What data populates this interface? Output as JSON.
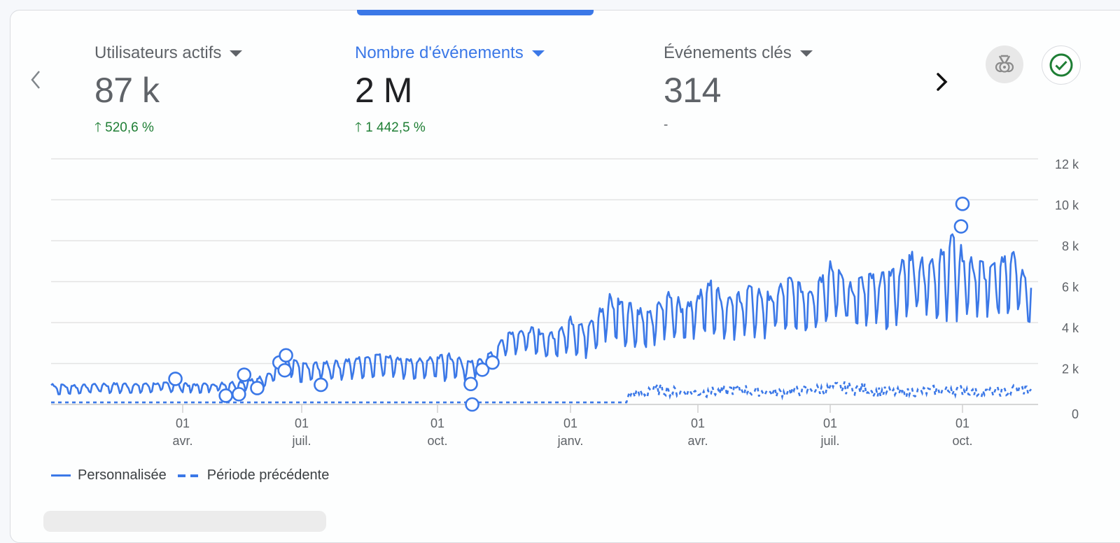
{
  "metrics": [
    {
      "label": "Utilisateurs actifs",
      "value": "87 k",
      "delta": "520,6 %",
      "delta_direction": "up",
      "active": false
    },
    {
      "label": "Nombre d'événements",
      "value": "2 M",
      "delta": "1 442,5 %",
      "delta_direction": "up",
      "active": true
    },
    {
      "label": "Événements clés",
      "value": "314",
      "delta": "-",
      "delta_direction": "none",
      "active": false
    }
  ],
  "nav": {
    "prev_icon": "chevron-left-icon",
    "next_icon": "chevron-right-icon"
  },
  "actions": {
    "insights_icon": "medal-icon",
    "status_icon": "check-circle-icon"
  },
  "colors": {
    "accent": "#3b78e7",
    "positive": "#1e7e34",
    "muted": "#5f6368"
  },
  "legend": {
    "series_current": "Personnalisée",
    "series_previous": "Période précédente"
  },
  "chart_data": {
    "type": "line",
    "y_ticks": [
      "0",
      "2 k",
      "4 k",
      "6 k",
      "8 k",
      "10 k",
      "12 k"
    ],
    "ylim": [
      0,
      12000
    ],
    "y_axis_position": "right",
    "grid": true,
    "legend_position": "bottom-left",
    "x_ticks": [
      {
        "date": "2023-04-01",
        "day": "01",
        "month": "avr."
      },
      {
        "date": "2023-07-01",
        "day": "01",
        "month": "juil."
      },
      {
        "date": "2023-10-01",
        "day": "01",
        "month": "oct."
      },
      {
        "date": "2024-01-01",
        "day": "01",
        "month": "janv."
      },
      {
        "date": "2024-04-01",
        "day": "01",
        "month": "avr."
      },
      {
        "date": "2024-07-01",
        "day": "01",
        "month": "juil."
      },
      {
        "date": "2024-10-01",
        "day": "01",
        "month": "oct."
      }
    ],
    "xlim": [
      "2023-01-01",
      "2024-11-17"
    ],
    "series": [
      {
        "name": "Personnalisée",
        "style": "solid",
        "biweekly_high_low": [
          [
            "2023-01-02",
            1000,
            450
          ],
          [
            "2023-01-16",
            950,
            500
          ],
          [
            "2023-01-30",
            1000,
            550
          ],
          [
            "2023-02-13",
            1050,
            550
          ],
          [
            "2023-02-27",
            1000,
            550
          ],
          [
            "2023-03-13",
            1050,
            600
          ],
          [
            "2023-03-27",
            1100,
            600
          ],
          [
            "2023-04-10",
            1000,
            550
          ],
          [
            "2023-04-24",
            1050,
            600
          ],
          [
            "2023-05-08",
            1100,
            600
          ],
          [
            "2023-05-22",
            1200,
            700
          ],
          [
            "2023-06-05",
            1500,
            900
          ],
          [
            "2023-06-19",
            2300,
            1300
          ],
          [
            "2023-07-03",
            2000,
            1000
          ],
          [
            "2023-07-17",
            2100,
            1200
          ],
          [
            "2023-07-31",
            2200,
            1200
          ],
          [
            "2023-08-14",
            2400,
            1300
          ],
          [
            "2023-08-28",
            2500,
            1400
          ],
          [
            "2023-09-11",
            2200,
            1200
          ],
          [
            "2023-09-25",
            2300,
            1300
          ],
          [
            "2023-10-09",
            2500,
            1100
          ],
          [
            "2023-10-23",
            2100,
            1200
          ],
          [
            "2023-11-06",
            2500,
            1600
          ],
          [
            "2023-11-20",
            3700,
            2500
          ],
          [
            "2023-12-04",
            3800,
            2300
          ],
          [
            "2023-12-18",
            3500,
            2200
          ],
          [
            "2024-01-01",
            4300,
            2500
          ],
          [
            "2024-01-15",
            4000,
            2200
          ],
          [
            "2024-01-29",
            5400,
            3200
          ],
          [
            "2024-02-12",
            5000,
            2700
          ],
          [
            "2024-02-26",
            4500,
            2700
          ],
          [
            "2024-03-11",
            5500,
            3300
          ],
          [
            "2024-03-25",
            5000,
            3000
          ],
          [
            "2024-04-08",
            6200,
            3600
          ],
          [
            "2024-04-22",
            5200,
            3100
          ],
          [
            "2024-05-06",
            5800,
            3300
          ],
          [
            "2024-05-20",
            5500,
            3200
          ],
          [
            "2024-06-03",
            6200,
            3600
          ],
          [
            "2024-06-17",
            5700,
            3600
          ],
          [
            "2024-07-01",
            7000,
            4200
          ],
          [
            "2024-07-15",
            6000,
            3800
          ],
          [
            "2024-07-29",
            6400,
            3600
          ],
          [
            "2024-08-12",
            6500,
            3700
          ],
          [
            "2024-08-26",
            7500,
            4300
          ],
          [
            "2024-09-09",
            7000,
            4300
          ],
          [
            "2024-09-23",
            8400,
            4000
          ],
          [
            "2024-10-07",
            7200,
            4200
          ],
          [
            "2024-10-21",
            6800,
            4300
          ],
          [
            "2024-11-04",
            7600,
            4500
          ],
          [
            "2024-11-17",
            5700,
            3800
          ]
        ]
      },
      {
        "name": "Période précédente",
        "style": "dashed",
        "points": [
          [
            "2023-01-01",
            100
          ],
          [
            "2024-02-10",
            100
          ],
          [
            "2024-02-12",
            600
          ],
          [
            "2024-02-26",
            800
          ],
          [
            "2024-03-11",
            700
          ],
          [
            "2024-03-25",
            650
          ],
          [
            "2024-04-08",
            700
          ],
          [
            "2024-04-22",
            800
          ],
          [
            "2024-05-06",
            700
          ],
          [
            "2024-05-20",
            650
          ],
          [
            "2024-06-03",
            750
          ],
          [
            "2024-06-17",
            800
          ],
          [
            "2024-07-01",
            900
          ],
          [
            "2024-07-15",
            850
          ],
          [
            "2024-07-29",
            700
          ],
          [
            "2024-08-12",
            650
          ],
          [
            "2024-08-26",
            700
          ],
          [
            "2024-09-09",
            750
          ],
          [
            "2024-09-23",
            800
          ],
          [
            "2024-10-07",
            650
          ],
          [
            "2024-10-21",
            700
          ],
          [
            "2024-11-04",
            800
          ],
          [
            "2024-11-17",
            750
          ]
        ]
      }
    ],
    "anomalies": [
      [
        "2023-03-27",
        1250
      ],
      [
        "2023-05-04",
        430
      ],
      [
        "2023-05-14",
        500
      ],
      [
        "2023-05-18",
        1450
      ],
      [
        "2023-05-28",
        800
      ],
      [
        "2023-06-14",
        2050
      ],
      [
        "2023-06-19",
        2400
      ],
      [
        "2023-06-18",
        1670
      ],
      [
        "2023-07-14",
        960
      ],
      [
        "2023-10-24",
        1000
      ],
      [
        "2023-10-25",
        0
      ],
      [
        "2023-11-01",
        1700
      ],
      [
        "2023-11-08",
        2050
      ],
      [
        "2024-10-01",
        9800
      ],
      [
        "2024-09-30",
        8700
      ]
    ]
  }
}
